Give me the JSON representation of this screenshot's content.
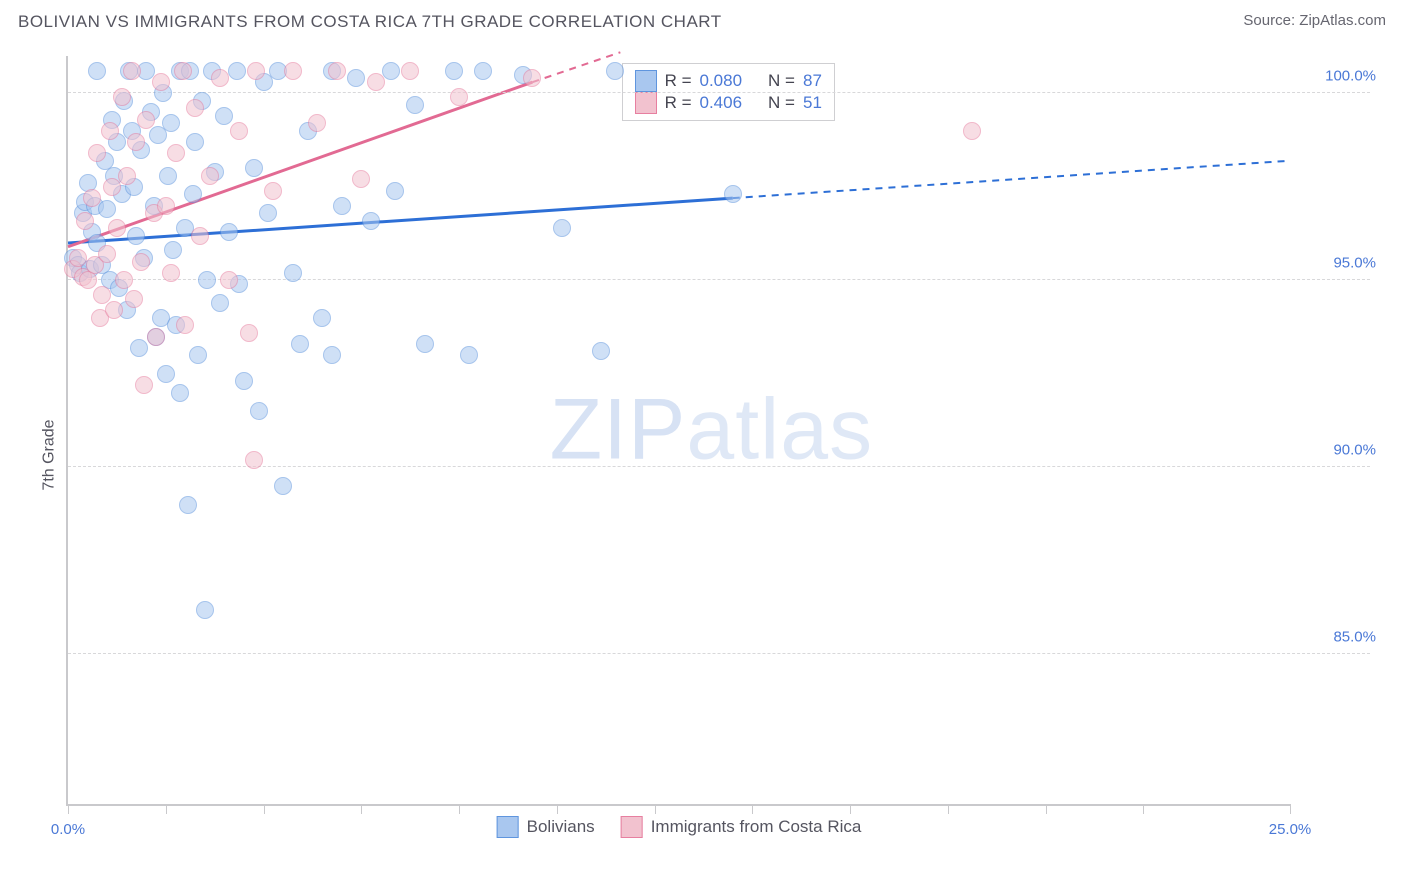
{
  "header": {
    "title": "BOLIVIAN VS IMMIGRANTS FROM COSTA RICA 7TH GRADE CORRELATION CHART",
    "source_label": "Source: ",
    "source_value": "ZipAtlas.com"
  },
  "watermark": {
    "part1": "ZIP",
    "part2": "atlas"
  },
  "chart": {
    "type": "scatter",
    "ylabel": "7th Grade",
    "xlim": [
      0,
      25
    ],
    "ylim": [
      81,
      101
    ],
    "xticks": [
      0,
      2,
      4,
      6,
      8,
      10,
      12,
      14,
      16,
      18,
      20,
      22,
      25
    ],
    "xtick_labels": {
      "0": "0.0%",
      "25": "25.0%"
    },
    "yticks": [
      85,
      90,
      95,
      100
    ],
    "ytick_labels": {
      "85": "85.0%",
      "90": "90.0%",
      "95": "95.0%",
      "100": "100.0%"
    },
    "grid_color": "#d8d8da",
    "axis_color": "#c9c9cc",
    "background_color": "#ffffff",
    "tick_label_color": "#4a78d6",
    "marker_radius": 9,
    "marker_opacity": 0.55,
    "series": [
      {
        "id": "bolivians",
        "label": "Bolivians",
        "fill": "#a9c7ef",
        "stroke": "#5f95de",
        "line_color": "#2d6fd6",
        "R": "0.080",
        "N": "87",
        "trend": {
          "x1": 0,
          "y1": 96.0,
          "x2_solid": 13.6,
          "y2_solid": 97.2,
          "x2_dash": 25,
          "y2_dash": 98.2
        },
        "points": [
          [
            0.1,
            95.6
          ],
          [
            0.2,
            95.4
          ],
          [
            0.25,
            95.2
          ],
          [
            0.3,
            96.8
          ],
          [
            0.35,
            97.1
          ],
          [
            0.4,
            97.6
          ],
          [
            0.45,
            95.3
          ],
          [
            0.5,
            96.3
          ],
          [
            0.55,
            97.0
          ],
          [
            0.6,
            96.0
          ],
          [
            0.6,
            100.6
          ],
          [
            0.7,
            95.4
          ],
          [
            0.75,
            98.2
          ],
          [
            0.8,
            96.9
          ],
          [
            0.85,
            95.0
          ],
          [
            0.9,
            99.3
          ],
          [
            0.95,
            97.8
          ],
          [
            1.0,
            98.7
          ],
          [
            1.05,
            94.8
          ],
          [
            1.1,
            97.3
          ],
          [
            1.15,
            99.8
          ],
          [
            1.2,
            94.2
          ],
          [
            1.25,
            100.6
          ],
          [
            1.3,
            99.0
          ],
          [
            1.35,
            97.5
          ],
          [
            1.4,
            96.2
          ],
          [
            1.45,
            93.2
          ],
          [
            1.5,
            98.5
          ],
          [
            1.55,
            95.6
          ],
          [
            1.6,
            100.6
          ],
          [
            1.7,
            99.5
          ],
          [
            1.75,
            97.0
          ],
          [
            1.8,
            93.5
          ],
          [
            1.85,
            98.9
          ],
          [
            1.9,
            94.0
          ],
          [
            1.95,
            100.0
          ],
          [
            2.0,
            92.5
          ],
          [
            2.05,
            97.8
          ],
          [
            2.1,
            99.2
          ],
          [
            2.15,
            95.8
          ],
          [
            2.2,
            93.8
          ],
          [
            2.3,
            100.6
          ],
          [
            2.3,
            92.0
          ],
          [
            2.4,
            96.4
          ],
          [
            2.45,
            89.0
          ],
          [
            2.5,
            100.6
          ],
          [
            2.55,
            97.3
          ],
          [
            2.6,
            98.7
          ],
          [
            2.65,
            93.0
          ],
          [
            2.75,
            99.8
          ],
          [
            2.8,
            86.2
          ],
          [
            2.85,
            95.0
          ],
          [
            2.95,
            100.6
          ],
          [
            3.0,
            97.9
          ],
          [
            3.1,
            94.4
          ],
          [
            3.2,
            99.4
          ],
          [
            3.3,
            96.3
          ],
          [
            3.45,
            100.6
          ],
          [
            3.5,
            94.9
          ],
          [
            3.6,
            92.3
          ],
          [
            3.8,
            98.0
          ],
          [
            3.9,
            91.5
          ],
          [
            4.0,
            100.3
          ],
          [
            4.1,
            96.8
          ],
          [
            4.3,
            100.6
          ],
          [
            4.4,
            89.5
          ],
          [
            4.6,
            95.2
          ],
          [
            4.75,
            93.3
          ],
          [
            4.9,
            99.0
          ],
          [
            5.2,
            94.0
          ],
          [
            5.4,
            100.6
          ],
          [
            5.4,
            93.0
          ],
          [
            5.6,
            97.0
          ],
          [
            5.9,
            100.4
          ],
          [
            6.2,
            96.6
          ],
          [
            6.6,
            100.6
          ],
          [
            6.7,
            97.4
          ],
          [
            7.1,
            99.7
          ],
          [
            7.3,
            93.3
          ],
          [
            7.9,
            100.6
          ],
          [
            8.2,
            93.0
          ],
          [
            8.5,
            100.6
          ],
          [
            9.3,
            100.5
          ],
          [
            10.1,
            96.4
          ],
          [
            10.9,
            93.1
          ],
          [
            11.2,
            100.6
          ],
          [
            13.6,
            97.3
          ]
        ]
      },
      {
        "id": "costa_rica",
        "label": "Immigrants from Costa Rica",
        "fill": "#f2c2cf",
        "stroke": "#e77fa0",
        "line_color": "#e26a93",
        "R": "0.406",
        "N": "51",
        "trend": {
          "x1": 0,
          "y1": 95.9,
          "x2_solid": 9.5,
          "y2_solid": 100.3,
          "x2_dash": 11.3,
          "y2_dash": 101.1
        },
        "points": [
          [
            0.1,
            95.3
          ],
          [
            0.2,
            95.6
          ],
          [
            0.3,
            95.1
          ],
          [
            0.35,
            96.6
          ],
          [
            0.4,
            95.0
          ],
          [
            0.5,
            97.2
          ],
          [
            0.55,
            95.4
          ],
          [
            0.6,
            98.4
          ],
          [
            0.65,
            94.0
          ],
          [
            0.7,
            94.6
          ],
          [
            0.8,
            95.7
          ],
          [
            0.85,
            99.0
          ],
          [
            0.9,
            97.5
          ],
          [
            0.95,
            94.2
          ],
          [
            1.0,
            96.4
          ],
          [
            1.1,
            99.9
          ],
          [
            1.15,
            95.0
          ],
          [
            1.2,
            97.8
          ],
          [
            1.3,
            100.6
          ],
          [
            1.35,
            94.5
          ],
          [
            1.4,
            98.7
          ],
          [
            1.5,
            95.5
          ],
          [
            1.55,
            92.2
          ],
          [
            1.6,
            99.3
          ],
          [
            1.75,
            96.8
          ],
          [
            1.8,
            93.5
          ],
          [
            1.9,
            100.3
          ],
          [
            2.0,
            97.0
          ],
          [
            2.1,
            95.2
          ],
          [
            2.2,
            98.4
          ],
          [
            2.35,
            100.6
          ],
          [
            2.4,
            93.8
          ],
          [
            2.6,
            99.6
          ],
          [
            2.7,
            96.2
          ],
          [
            2.9,
            97.8
          ],
          [
            3.1,
            100.4
          ],
          [
            3.3,
            95.0
          ],
          [
            3.5,
            99.0
          ],
          [
            3.7,
            93.6
          ],
          [
            3.8,
            90.2
          ],
          [
            3.85,
            100.6
          ],
          [
            4.2,
            97.4
          ],
          [
            4.6,
            100.6
          ],
          [
            5.1,
            99.2
          ],
          [
            5.5,
            100.6
          ],
          [
            6.0,
            97.7
          ],
          [
            6.3,
            100.3
          ],
          [
            7.0,
            100.6
          ],
          [
            8.0,
            99.9
          ],
          [
            9.5,
            100.4
          ],
          [
            18.5,
            99.0
          ]
        ]
      }
    ],
    "stats_box": {
      "left_pct": 45.3,
      "top_pct": 1.0,
      "r_label": "R =",
      "n_label": "N ="
    },
    "legend_bottom": true
  }
}
